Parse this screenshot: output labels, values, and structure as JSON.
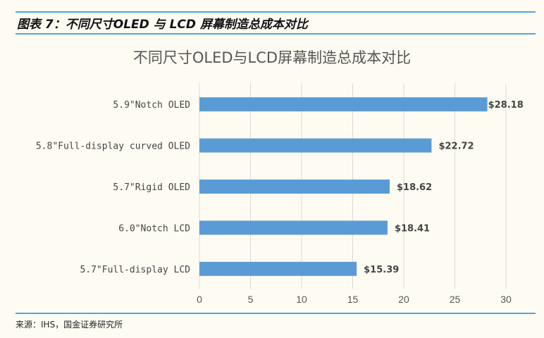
{
  "figure_title": "图表 7：不同尺寸OLED 与 LCD 屏幕制造总成本对比",
  "source": "来源：IHS，国金证券研究所",
  "chart_data": {
    "type": "bar",
    "orientation": "horizontal",
    "title": "不同尺寸OLED与LCD屏幕制造总成本对比",
    "categories": [
      "5.9\"Notch OLED",
      "5.8\"Full-display curved OLED",
      "5.7\"Rigid OLED",
      "6.0\"Notch LCD",
      "5.7\"Full-display LCD"
    ],
    "values": [
      28.18,
      22.72,
      18.62,
      18.41,
      15.39
    ],
    "data_labels": [
      "$28.18",
      "$22.72",
      "$18.62",
      "$18.41",
      "$15.39"
    ],
    "xlim": [
      0,
      30
    ],
    "xticks": [
      0,
      5,
      10,
      15,
      20,
      25,
      30
    ],
    "grid": true,
    "bar_color": "#5b9bd5"
  }
}
